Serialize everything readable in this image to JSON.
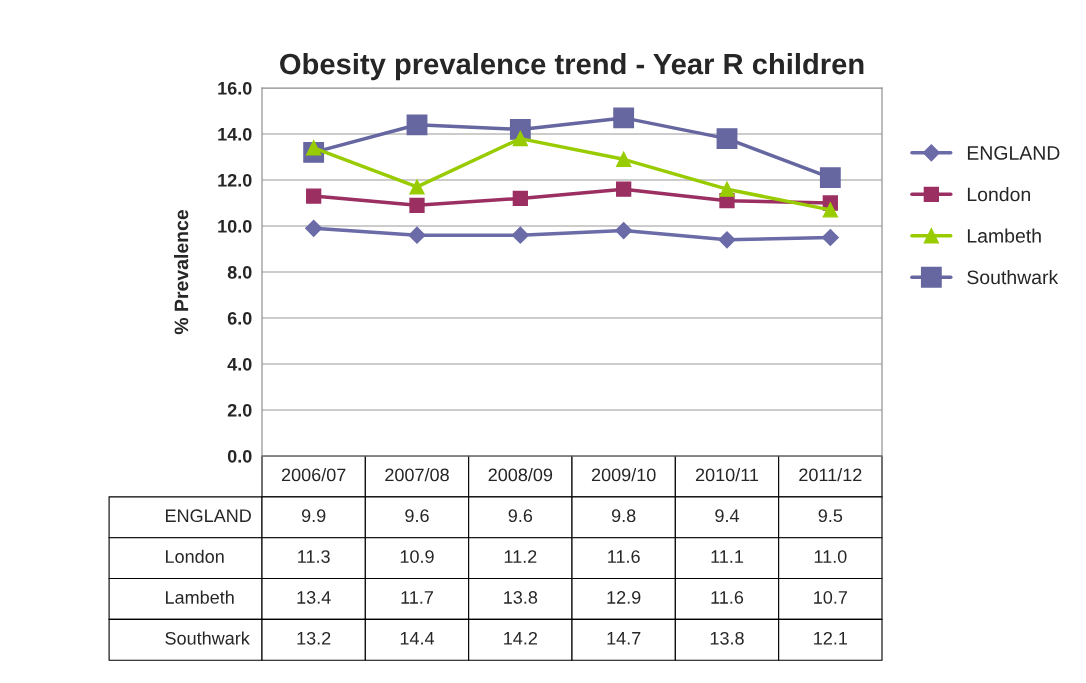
{
  "chart_data": {
    "type": "line",
    "title": "Obesity prevalence trend - Year R children",
    "ylabel": "% Prevalence",
    "categories": [
      "2006/07",
      "2007/08",
      "2008/09",
      "2009/10",
      "2010/11",
      "2011/12"
    ],
    "series": [
      {
        "name": "ENGLAND",
        "color": "#6b6ba8",
        "marker": "diamond",
        "values": [
          9.9,
          9.6,
          9.6,
          9.8,
          9.4,
          9.5
        ],
        "value_labels": [
          "9.9",
          "9.6",
          "9.6",
          "9.8",
          "9.4",
          "9.5"
        ]
      },
      {
        "name": "London",
        "color": "#9b2f62",
        "marker": "square",
        "values": [
          11.3,
          10.9,
          11.2,
          11.6,
          11.1,
          11.0
        ],
        "value_labels": [
          "11.3",
          "10.9",
          "11.2",
          "11.6",
          "11.1",
          "11.0"
        ]
      },
      {
        "name": "Lambeth",
        "color": "#99cc00",
        "marker": "triangle",
        "values": [
          13.4,
          11.7,
          13.8,
          12.9,
          11.6,
          10.7
        ],
        "value_labels": [
          "13.4",
          "11.7",
          "13.8",
          "12.9",
          "11.6",
          "10.7"
        ]
      },
      {
        "name": "Southwark",
        "color": "#6666a0",
        "marker": "square",
        "values": [
          13.2,
          14.4,
          14.2,
          14.7,
          13.8,
          12.1
        ],
        "value_labels": [
          "13.2",
          "14.4",
          "14.2",
          "14.7",
          "13.8",
          "12.1"
        ]
      }
    ],
    "ylim": [
      0,
      16
    ],
    "yticks": [
      {
        "value": 0,
        "label": "0.0"
      },
      {
        "value": 2,
        "label": "2.0"
      },
      {
        "value": 4,
        "label": "4.0"
      },
      {
        "value": 6,
        "label": "6.0"
      },
      {
        "value": 8,
        "label": "8.0"
      },
      {
        "value": 10,
        "label": "10.0"
      },
      {
        "value": 12,
        "label": "12.0"
      },
      {
        "value": 14,
        "label": "14.0"
      },
      {
        "value": 16,
        "label": "16.0"
      }
    ],
    "grid": "y",
    "legend": "right",
    "line_style": "solid"
  }
}
